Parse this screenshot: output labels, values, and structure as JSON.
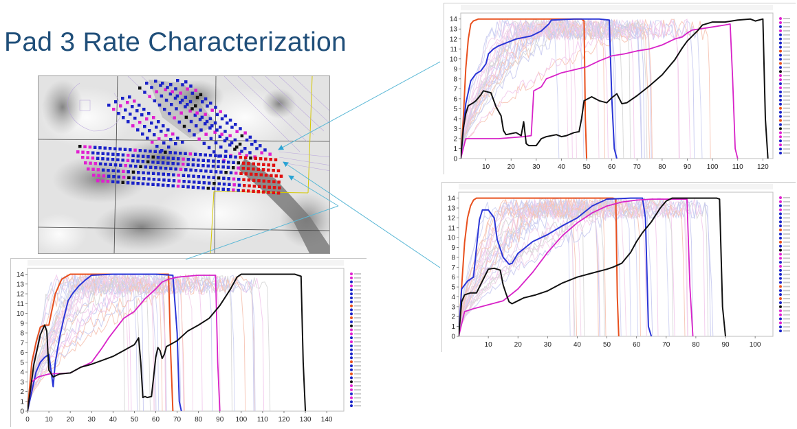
{
  "slide": {
    "title": "Pad 3 Rate Characterization"
  },
  "colors": {
    "title": "#1f4e79",
    "connector": "#5bb8d6",
    "arrow": "#29a3d4",
    "wellBlue": "#1a22c8",
    "wellMagenta": "#e020d0",
    "wellRed": "#e01010",
    "wellBlack": "#111111"
  },
  "chart_data": [
    {
      "id": "top-right",
      "type": "line",
      "xlim": [
        0,
        124
      ],
      "ylim": [
        0,
        14.6
      ],
      "xticks": [
        10,
        20,
        30,
        40,
        50,
        60,
        70,
        80,
        90,
        100,
        110,
        120
      ],
      "yticks": [
        0,
        1,
        2,
        3,
        4,
        5,
        6,
        7,
        8,
        9,
        10,
        11,
        12,
        13,
        14
      ],
      "series": [
        {
          "color": "#e8501e",
          "width": 2,
          "x": [
            0,
            1,
            2,
            3,
            4,
            5,
            6,
            7,
            8,
            10,
            48,
            49,
            49.5,
            50
          ],
          "y": [
            0,
            4,
            9,
            12,
            13.5,
            13.8,
            13.9,
            14,
            14,
            14,
            14,
            13.8,
            4,
            0
          ]
        },
        {
          "color": "#2a35d6",
          "width": 2,
          "x": [
            0,
            2,
            4,
            6,
            8,
            10,
            11,
            13,
            15,
            18,
            22,
            28,
            32,
            35,
            36,
            45,
            55,
            59,
            60,
            61,
            62
          ],
          "y": [
            0,
            5.5,
            7.8,
            8.5,
            8.8,
            9.5,
            10.5,
            11,
            11.3,
            11.6,
            12,
            12.3,
            12.8,
            13.5,
            13.9,
            14,
            14,
            13.9,
            6,
            1,
            0
          ]
        },
        {
          "color": "#d822c8",
          "width": 1.8,
          "x": [
            0,
            2,
            4,
            8,
            15,
            25,
            28,
            29,
            32,
            34,
            37,
            40,
            45,
            50,
            55,
            60,
            65,
            70,
            75,
            80,
            85,
            88,
            90,
            92,
            95,
            100,
            105,
            107,
            108,
            109,
            110
          ],
          "y": [
            0,
            2,
            2,
            2,
            2,
            2.2,
            2.3,
            6.8,
            7.2,
            8,
            8.3,
            8.6,
            8.9,
            9.2,
            9.8,
            10.3,
            10.5,
            10.8,
            11,
            11.4,
            12,
            12.2,
            12.6,
            12.9,
            13,
            13.2,
            13.4,
            13.5,
            8,
            1,
            0
          ]
        },
        {
          "color": "#111111",
          "width": 2,
          "x": [
            0,
            1,
            2,
            3,
            5,
            6,
            8,
            9,
            12,
            14,
            16,
            17,
            18,
            22,
            24,
            25,
            26,
            27,
            30,
            32,
            34,
            38,
            40,
            42,
            45,
            47,
            48,
            49,
            52,
            55,
            58,
            60,
            62,
            64,
            66,
            70,
            75,
            80,
            85,
            88,
            90,
            92,
            94,
            96,
            100,
            105,
            110,
            115,
            117,
            120,
            121,
            122
          ],
          "y": [
            0,
            3,
            4.5,
            5.3,
            5.6,
            5.8,
            6.4,
            6.8,
            6.6,
            5.2,
            4.3,
            2.8,
            2.4,
            2.6,
            2.3,
            3.7,
            1.5,
            1.3,
            1.3,
            2,
            2.2,
            2.4,
            2.2,
            2.3,
            2.6,
            2.7,
            4,
            5.8,
            6.2,
            5.8,
            5.6,
            6.1,
            6.5,
            5.5,
            5.6,
            6.3,
            7.3,
            8.4,
            9.9,
            11.1,
            11.8,
            12.3,
            12.8,
            13.4,
            13.7,
            13.7,
            13.9,
            14,
            13.8,
            14,
            4,
            0
          ]
        }
      ],
      "background_series_count": 28
    },
    {
      "id": "bottom-left",
      "type": "line",
      "xlim": [
        0,
        148
      ],
      "ylim": [
        0,
        14.6
      ],
      "xticks": [
        0,
        10,
        20,
        30,
        40,
        50,
        60,
        70,
        80,
        90,
        100,
        110,
        120,
        130,
        140
      ],
      "yticks": [
        0,
        1,
        2,
        3,
        4,
        5,
        6,
        7,
        8,
        9,
        10,
        11,
        12,
        13,
        14
      ],
      "series": [
        {
          "color": "#e8501e",
          "width": 2,
          "x": [
            0,
            2,
            4,
            6,
            8,
            10,
            13,
            16,
            20,
            30,
            50,
            66,
            67,
            68
          ],
          "y": [
            0,
            5,
            7,
            8.6,
            8.8,
            8.8,
            12,
            13.5,
            14,
            14,
            14,
            14,
            6,
            0
          ]
        },
        {
          "color": "#2a35d6",
          "width": 2,
          "x": [
            0,
            2,
            4,
            6,
            8,
            10,
            12,
            13,
            15,
            17,
            19,
            21,
            24,
            27,
            30,
            40,
            60,
            68,
            70,
            71,
            72
          ],
          "y": [
            0,
            2,
            4,
            5,
            5.5,
            5.8,
            2.5,
            5,
            7.5,
            9.5,
            11.3,
            12,
            12.8,
            13.4,
            13.9,
            14,
            14,
            13.9,
            8,
            1,
            0
          ]
        },
        {
          "color": "#d822c8",
          "width": 1.8,
          "x": [
            0,
            2,
            5,
            10,
            20,
            25,
            30,
            35,
            38,
            45,
            50,
            55,
            60,
            63,
            66,
            70,
            75,
            80,
            85,
            88,
            89,
            90
          ],
          "y": [
            0,
            3,
            3.5,
            3.8,
            3.9,
            4.5,
            5,
            6.5,
            7.5,
            9.5,
            10.2,
            11.5,
            12.5,
            13.2,
            13.5,
            13.7,
            13.8,
            13.9,
            13.9,
            13.9,
            5,
            0
          ]
        },
        {
          "color": "#111111",
          "width": 2,
          "x": [
            0,
            3,
            6,
            8,
            9,
            10,
            12,
            15,
            20,
            25,
            30,
            35,
            40,
            45,
            50,
            52,
            53,
            54,
            55,
            56,
            58,
            60,
            61,
            62,
            63,
            64,
            65,
            70,
            75,
            80,
            85,
            90,
            95,
            98,
            100,
            105,
            110,
            120,
            125,
            128,
            129,
            130
          ],
          "y": [
            0,
            4.8,
            7.8,
            8.8,
            8.2,
            4.2,
            3.5,
            3.8,
            3.9,
            4.5,
            4.8,
            5.2,
            5.6,
            6.2,
            6.8,
            7.5,
            5,
            1.4,
            1.5,
            1.4,
            1.5,
            5.5,
            6.5,
            6.2,
            5.4,
            5.8,
            6.6,
            7.2,
            8.2,
            8.8,
            9.5,
            10.8,
            12.5,
            13.7,
            14,
            14,
            14,
            14,
            14,
            13.8,
            5,
            0
          ]
        }
      ],
      "background_series_count": 30
    },
    {
      "id": "bottom-right",
      "type": "line",
      "xlim": [
        0,
        106
      ],
      "ylim": [
        0,
        14.6
      ],
      "xticks": [
        10,
        20,
        30,
        40,
        50,
        60,
        70,
        80,
        90,
        100
      ],
      "yticks": [
        0,
        1,
        2,
        3,
        4,
        5,
        6,
        7,
        8,
        9,
        10,
        11,
        12,
        13,
        14
      ],
      "series": [
        {
          "color": "#e8501e",
          "width": 2,
          "x": [
            0,
            1,
            2,
            3,
            4,
            5,
            6,
            8,
            10,
            20,
            40,
            52,
            53,
            53.5,
            54
          ],
          "y": [
            0,
            5,
            9.5,
            12,
            13.2,
            13.8,
            14,
            14,
            14,
            14,
            14,
            14,
            13.9,
            4,
            0
          ]
        },
        {
          "color": "#2a35d6",
          "width": 2,
          "x": [
            0,
            1,
            3,
            5,
            6,
            7,
            8,
            10,
            12,
            13,
            15,
            17,
            18,
            20,
            25,
            30,
            35,
            40,
            45,
            50,
            58,
            62,
            63,
            64,
            65
          ],
          "y": [
            0,
            4.8,
            5.6,
            6,
            9,
            11.8,
            12.8,
            12.8,
            12,
            9.8,
            8,
            7.3,
            7.4,
            8.4,
            9.6,
            10.3,
            11.2,
            12,
            13.2,
            13.9,
            14,
            14,
            12,
            1,
            0
          ]
        },
        {
          "color": "#d822c8",
          "width": 1.8,
          "x": [
            0,
            2,
            5,
            10,
            15,
            20,
            25,
            30,
            35,
            40,
            45,
            50,
            55,
            60,
            65,
            70,
            75,
            77,
            78,
            79
          ],
          "y": [
            0,
            2.5,
            2.8,
            3.2,
            3.6,
            4.8,
            6.5,
            8.5,
            10.2,
            11.5,
            12.5,
            13.2,
            13.6,
            13.8,
            13.9,
            13.9,
            13.9,
            13.9,
            5,
            0
          ]
        },
        {
          "color": "#111111",
          "width": 2,
          "x": [
            0,
            1,
            2,
            4,
            6,
            8,
            10,
            12,
            14,
            15,
            16,
            17,
            18,
            20,
            22,
            26,
            30,
            35,
            40,
            45,
            50,
            52,
            55,
            58,
            60,
            62,
            65,
            68,
            70,
            72,
            75,
            80,
            85,
            87,
            88,
            89,
            90
          ],
          "y": [
            0,
            3.5,
            4.2,
            4.4,
            4.4,
            5.6,
            6.8,
            6.9,
            6.7,
            5.2,
            4.3,
            3.5,
            3.3,
            3.6,
            3.9,
            4.2,
            4.6,
            5.4,
            6,
            6.4,
            6.8,
            7,
            7.4,
            8.5,
            9.6,
            10.5,
            11.6,
            13,
            13.7,
            14,
            14,
            14,
            14,
            14,
            13.9,
            3,
            0
          ]
        }
      ],
      "background_series_count": 30
    }
  ]
}
